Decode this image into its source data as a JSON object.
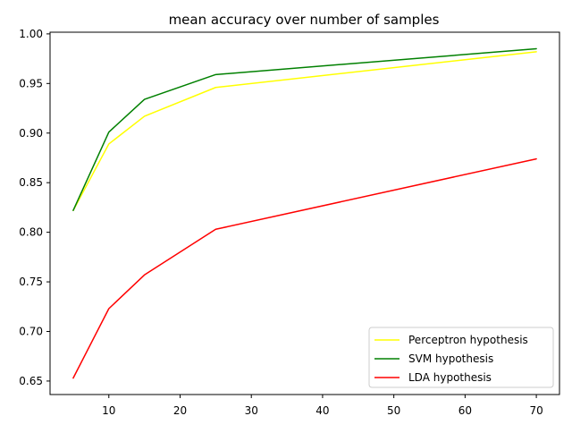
{
  "chart_data": {
    "type": "line",
    "title": "mean accuracy over number of samples",
    "xlabel": "",
    "ylabel": "",
    "x": [
      5,
      10,
      15,
      25,
      70
    ],
    "xlim": [
      1.75,
      73.25
    ],
    "ylim": [
      0.6364,
      1.0017
    ],
    "xticks": [
      10,
      20,
      30,
      40,
      50,
      60,
      70
    ],
    "yticks": [
      0.65,
      0.7,
      0.75,
      0.8,
      0.85,
      0.9,
      0.95,
      1.0
    ],
    "xtick_labels": [
      "10",
      "20",
      "30",
      "40",
      "50",
      "60",
      "70"
    ],
    "ytick_labels": [
      "0.65",
      "0.70",
      "0.75",
      "0.80",
      "0.85",
      "0.90",
      "0.95",
      "1.00"
    ],
    "grid": false,
    "legend_position": "lower-right",
    "series": [
      {
        "name": "Perceptron hypothesis",
        "color": "#ffff00",
        "values": [
          0.822,
          0.889,
          0.917,
          0.946,
          0.982
        ]
      },
      {
        "name": "SVM hypothesis",
        "color": "#008000",
        "values": [
          0.822,
          0.901,
          0.934,
          0.959,
          0.985
        ]
      },
      {
        "name": "LDA hypothesis",
        "color": "#ff0000",
        "values": [
          0.653,
          0.723,
          0.757,
          0.803,
          0.874
        ]
      }
    ]
  }
}
